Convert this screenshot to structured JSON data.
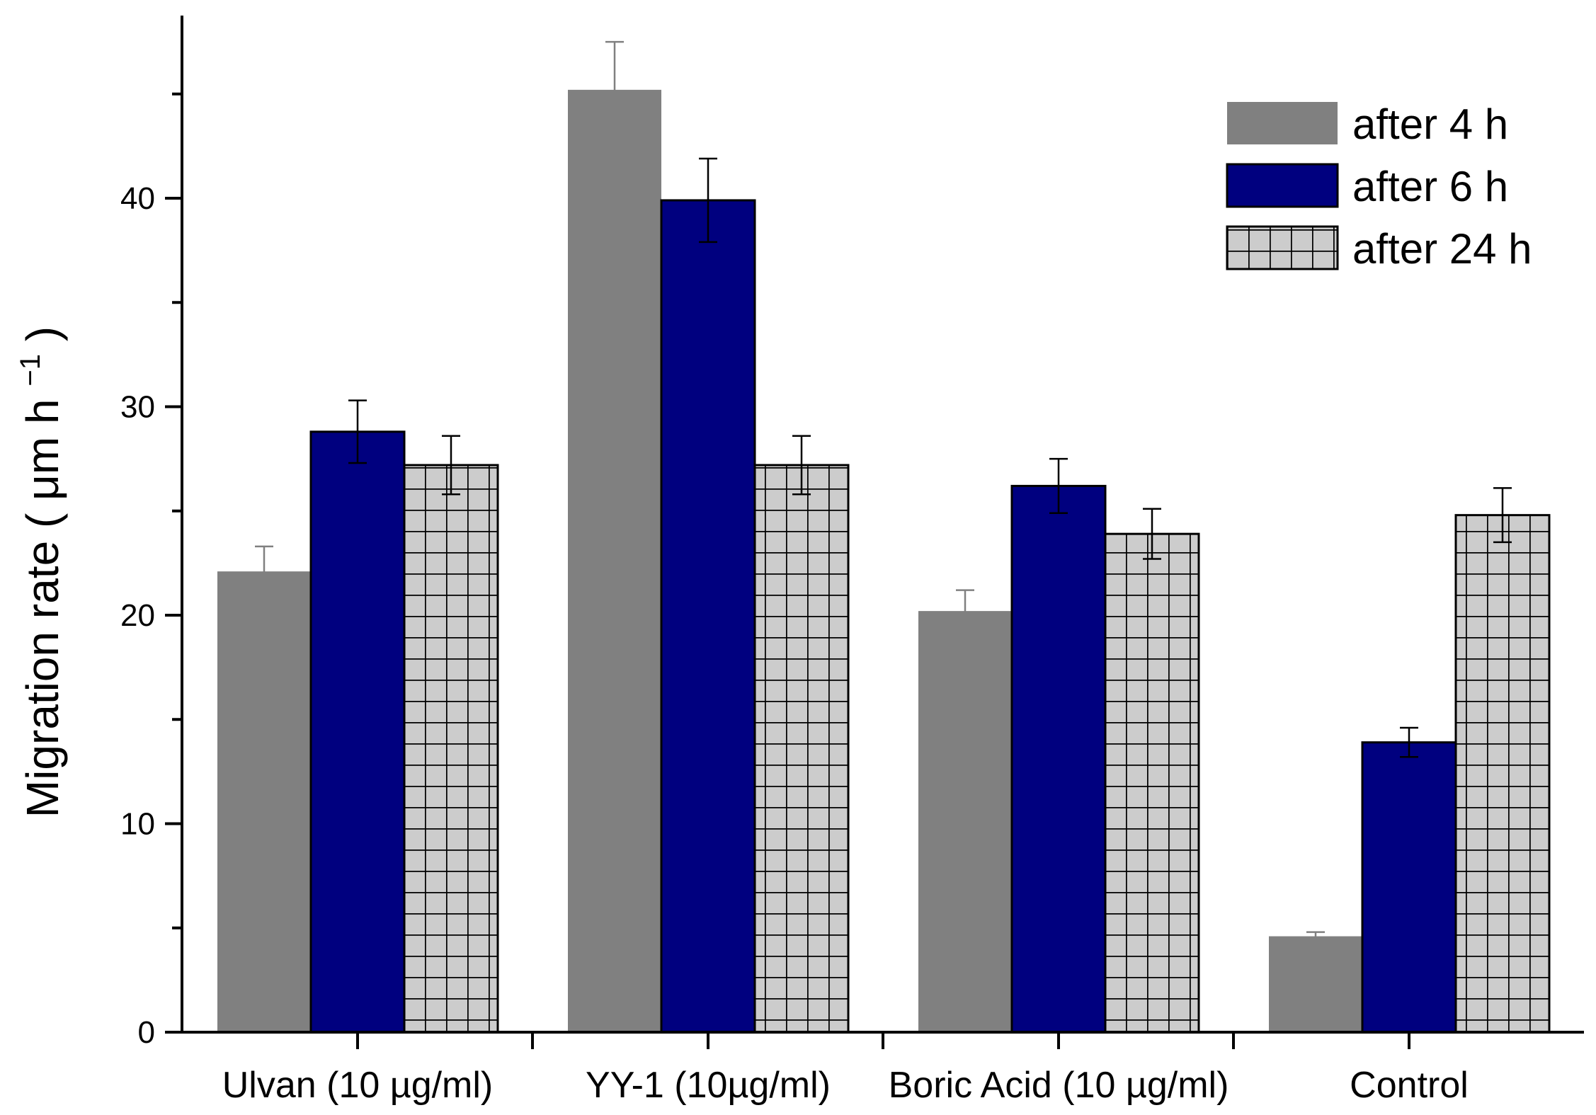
{
  "chart_data": {
    "type": "bar",
    "title": "",
    "xlabel": "",
    "ylabel": "Migration rate",
    "ylabel_unit_prefix": "μm h",
    "ylabel_unit_exponent": "−1",
    "ylim": [
      0,
      48
    ],
    "yticks": [
      0,
      10,
      20,
      30,
      40
    ],
    "ytick_labels": [
      "0",
      "10",
      "20",
      "30",
      "40"
    ],
    "y_minor_step": 5,
    "grid": false,
    "legend_position": "top-right",
    "categories": [
      "Ulvan (10 µg/ml)",
      "YY-1 (10µg/ml)",
      "Boric Acid (10 µg/ml)",
      "Control"
    ],
    "series": [
      {
        "name": "after 4 h",
        "style": "solid",
        "fill": "#808080",
        "values": [
          22.1,
          45.2,
          20.2,
          4.6
        ],
        "errors": [
          1.2,
          2.3,
          1.0,
          0.2
        ]
      },
      {
        "name": "after 6 h",
        "style": "solid",
        "fill": "#00007f",
        "values": [
          28.8,
          39.9,
          26.2,
          13.9
        ],
        "errors": [
          1.5,
          2.0,
          1.3,
          0.7
        ]
      },
      {
        "name": "after 24 h",
        "style": "grid-hatch",
        "fill": "#cccccc",
        "values": [
          27.2,
          27.2,
          23.9,
          24.8
        ],
        "errors": [
          1.4,
          1.4,
          1.2,
          1.3
        ]
      }
    ]
  }
}
